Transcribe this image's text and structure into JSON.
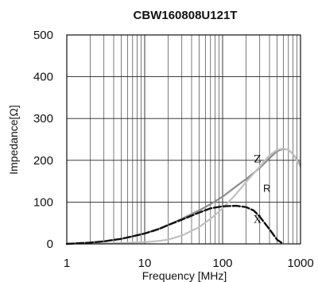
{
  "chart_data": {
    "type": "line",
    "title": "CBW160808U121T",
    "xlabel": "Frequency [MHz]",
    "ylabel": "Impedance[Ω]",
    "xscale": "log",
    "xlim": [
      1,
      1000
    ],
    "ylim": [
      0,
      500
    ],
    "xticks": [
      {
        "value": 1,
        "label": "1"
      },
      {
        "value": 10,
        "label": "10"
      },
      {
        "value": 100,
        "label": "100"
      },
      {
        "value": 1000,
        "label": "1000"
      }
    ],
    "yticks": [
      {
        "value": 0,
        "label": "0"
      },
      {
        "value": 100,
        "label": "100"
      },
      {
        "value": 200,
        "label": "200"
      },
      {
        "value": 300,
        "label": "300"
      },
      {
        "value": 400,
        "label": "400"
      },
      {
        "value": 500,
        "label": "500"
      }
    ],
    "grid": true,
    "series": [
      {
        "name": "Z",
        "color": "#8c8c8c",
        "dash": "solid",
        "x": [
          1,
          2,
          3,
          5,
          7,
          10,
          15,
          20,
          30,
          50,
          70,
          100,
          150,
          200,
          300,
          400,
          500,
          600,
          700,
          800,
          1000
        ],
        "y": [
          0,
          3,
          6,
          12,
          18,
          25,
          36,
          45,
          60,
          80,
          95,
          113,
          138,
          155,
          182,
          205,
          222,
          227,
          225,
          215,
          190
        ]
      },
      {
        "name": "R",
        "color": "#c0c0c0",
        "dash": "solid",
        "x": [
          1,
          3,
          5,
          10,
          15,
          20,
          30,
          50,
          70,
          100,
          150,
          200,
          300,
          400,
          500,
          600,
          700,
          800,
          1000
        ],
        "y": [
          0,
          1,
          2,
          4,
          7,
          10,
          20,
          40,
          60,
          85,
          120,
          148,
          185,
          212,
          225,
          228,
          225,
          215,
          185
        ]
      },
      {
        "name": "X",
        "color": "#111111",
        "dash": "dashed",
        "x": [
          1,
          2,
          3,
          5,
          7,
          10,
          15,
          20,
          30,
          50,
          70,
          100,
          150,
          200,
          250,
          300,
          400,
          500,
          600
        ],
        "y": [
          0,
          3,
          6,
          12,
          18,
          25,
          35,
          45,
          58,
          75,
          85,
          90,
          91,
          88,
          80,
          65,
          35,
          10,
          0
        ]
      }
    ],
    "annotations": [
      {
        "text": "Z",
        "x": 280,
        "y": 195
      },
      {
        "text": "R",
        "x": 370,
        "y": 125
      },
      {
        "text": "X",
        "x": 280,
        "y": 50
      }
    ]
  }
}
